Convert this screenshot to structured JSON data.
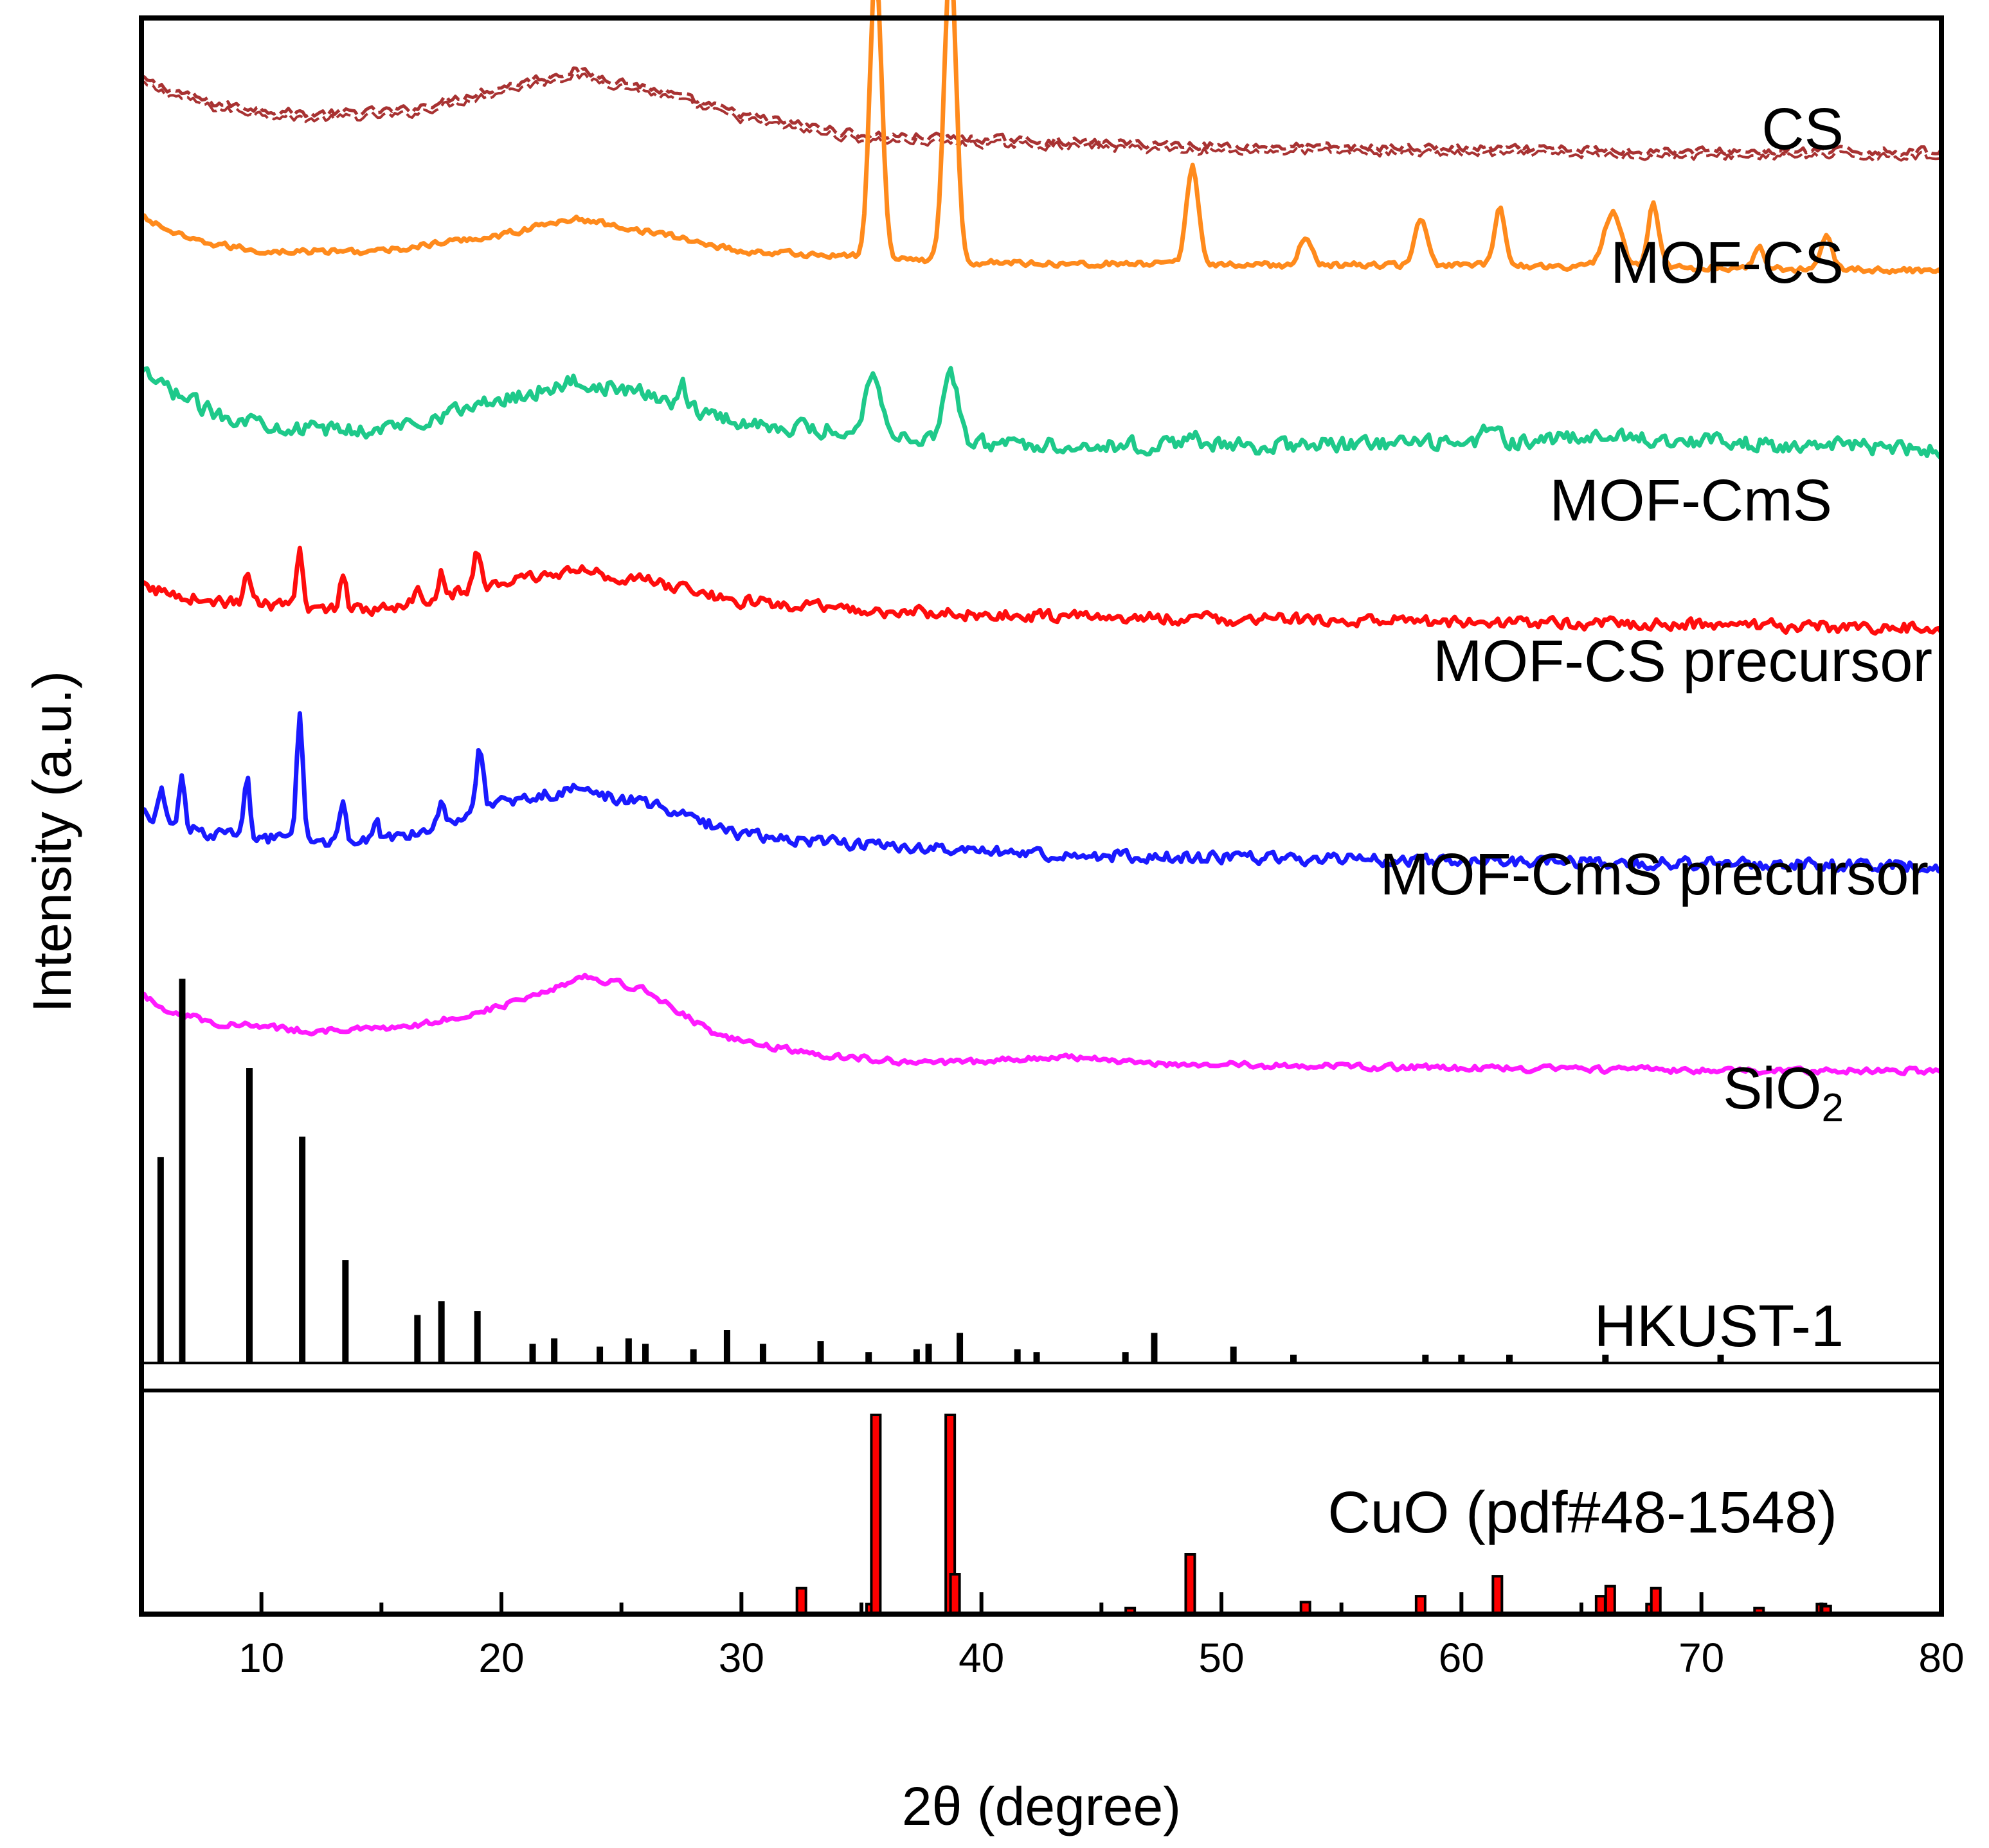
{
  "chart_data": {
    "type": "line",
    "title": "",
    "xlabel": "2θ (degree)",
    "ylabel": "Intensity (a.u.)",
    "xlim": [
      5,
      80
    ],
    "xticks": [
      10,
      20,
      30,
      40,
      50,
      60,
      70,
      80
    ],
    "grid": false,
    "legend": "labels placed at right end of each curve",
    "series": [
      {
        "name": "CS",
        "label": "CS",
        "color": "#a83232",
        "style": "dashed",
        "baseline": 0.935,
        "points": [
          [
            5,
            0.955
          ],
          [
            8,
            0.938
          ],
          [
            12,
            0.93
          ],
          [
            16,
            0.933
          ],
          [
            20,
            0.95
          ],
          [
            23,
            0.962
          ],
          [
            26,
            0.95
          ],
          [
            30,
            0.93
          ],
          [
            35,
            0.915
          ],
          [
            40,
            0.912
          ],
          [
            50,
            0.907
          ],
          [
            60,
            0.905
          ],
          [
            70,
            0.903
          ],
          [
            80,
            0.903
          ]
        ],
        "noise": 0.004,
        "peaks": []
      },
      {
        "name": "MOF-CS",
        "label": "MOF-CS",
        "color": "#ff8a1c",
        "baseline": 0.83,
        "points": [
          [
            5,
            0.855
          ],
          [
            7,
            0.838
          ],
          [
            10,
            0.83
          ],
          [
            15,
            0.83
          ],
          [
            20,
            0.842
          ],
          [
            23,
            0.854
          ],
          [
            26,
            0.845
          ],
          [
            30,
            0.83
          ],
          [
            35,
            0.826
          ],
          [
            40,
            0.822
          ],
          [
            50,
            0.82
          ],
          [
            60,
            0.82
          ],
          [
            70,
            0.818
          ],
          [
            80,
            0.816
          ]
        ],
        "noise": 0.003,
        "peaks": [
          [
            35.6,
            0.21,
            0.25
          ],
          [
            38.7,
            0.22,
            0.25
          ],
          [
            48.8,
            0.072,
            0.25
          ],
          [
            53.5,
            0.02,
            0.25
          ],
          [
            58.3,
            0.034,
            0.25
          ],
          [
            61.6,
            0.041,
            0.22
          ],
          [
            66.3,
            0.04,
            0.35
          ],
          [
            68.0,
            0.046,
            0.22
          ],
          [
            72.4,
            0.017,
            0.22
          ],
          [
            75.2,
            0.026,
            0.22
          ]
        ]
      },
      {
        "name": "MOF-CmS",
        "label": "MOF-CmS",
        "color": "#1ec98a",
        "baseline": 0.695,
        "points": [
          [
            5,
            0.74
          ],
          [
            8,
            0.712
          ],
          [
            12,
            0.7
          ],
          [
            15,
            0.7
          ],
          [
            20,
            0.722
          ],
          [
            23,
            0.735
          ],
          [
            26,
            0.726
          ],
          [
            30,
            0.705
          ],
          [
            35,
            0.698
          ],
          [
            40,
            0.69
          ],
          [
            50,
            0.688
          ],
          [
            60,
            0.69
          ],
          [
            67,
            0.695
          ],
          [
            72,
            0.69
          ],
          [
            80,
            0.685
          ]
        ],
        "noise": 0.008,
        "peaks": [
          [
            35.5,
            0.048,
            0.3
          ],
          [
            38.7,
            0.05,
            0.3
          ],
          [
            27.5,
            0.018,
            0.15
          ],
          [
            48.7,
            0.01,
            0.3
          ],
          [
            61.2,
            0.012,
            0.3
          ]
        ]
      },
      {
        "name": "MOF-CS precursor",
        "label": "MOF-CS precursor",
        "color": "#ff0d0d",
        "baseline": 0.56,
        "points": [
          [
            5,
            0.585
          ],
          [
            8,
            0.575
          ],
          [
            12,
            0.57
          ],
          [
            15,
            0.57
          ],
          [
            20,
            0.588
          ],
          [
            23,
            0.598
          ],
          [
            26,
            0.59
          ],
          [
            30,
            0.575
          ],
          [
            35,
            0.568
          ],
          [
            40,
            0.565
          ],
          [
            50,
            0.562
          ],
          [
            60,
            0.56
          ],
          [
            70,
            0.558
          ],
          [
            80,
            0.555
          ]
        ],
        "noise": 0.006,
        "peaks": [
          [
            9.4,
            0.028,
            0.12
          ],
          [
            11.6,
            0.04,
            0.12
          ],
          [
            13.4,
            0.024,
            0.12
          ],
          [
            16.5,
            0.014,
            0.12
          ],
          [
            17.5,
            0.018,
            0.12
          ],
          [
            19.0,
            0.026,
            0.15
          ]
        ]
      },
      {
        "name": "MOF-CmS precursor",
        "label": "MOF-CmS precursor",
        "color": "#1a1aff",
        "baseline": 0.385,
        "points": [
          [
            5,
            0.42
          ],
          [
            8,
            0.405
          ],
          [
            12,
            0.4
          ],
          [
            15,
            0.4
          ],
          [
            20,
            0.428
          ],
          [
            23,
            0.438
          ],
          [
            26,
            0.428
          ],
          [
            30,
            0.405
          ],
          [
            35,
            0.398
          ],
          [
            40,
            0.392
          ],
          [
            50,
            0.388
          ],
          [
            60,
            0.386
          ],
          [
            70,
            0.384
          ],
          [
            80,
            0.382
          ]
        ],
        "noise": 0.006,
        "peaks": [
          [
            5.8,
            0.022,
            0.12
          ],
          [
            6.7,
            0.035,
            0.12
          ],
          [
            9.4,
            0.048,
            0.12
          ],
          [
            11.6,
            0.092,
            0.12
          ],
          [
            13.4,
            0.03,
            0.12
          ],
          [
            14.8,
            0.012,
            0.12
          ],
          [
            17.5,
            0.016,
            0.12
          ],
          [
            19.1,
            0.046,
            0.15
          ]
        ]
      },
      {
        "name": "SiO2",
        "label": "SiO",
        "label_subscript": "2",
        "color": "#ff1aff",
        "baseline": 0.235,
        "points": [
          [
            5,
            0.288
          ],
          [
            6,
            0.278
          ],
          [
            8,
            0.268
          ],
          [
            12,
            0.262
          ],
          [
            16,
            0.264
          ],
          [
            20,
            0.28
          ],
          [
            23.5,
            0.302
          ],
          [
            26,
            0.292
          ],
          [
            29,
            0.258
          ],
          [
            33,
            0.245
          ],
          [
            38,
            0.238
          ],
          [
            43,
            0.243
          ],
          [
            48,
            0.238
          ],
          [
            55,
            0.236
          ],
          [
            65,
            0.234
          ],
          [
            72,
            0.233
          ],
          [
            80,
            0.233
          ]
        ],
        "noise": 0.003,
        "peaks": []
      },
      {
        "name": "HKUST-1",
        "label": "HKUST-1",
        "color": "#000000",
        "style": "sticks",
        "baseline": 0.02,
        "peaks": [
          [
            5.8,
            0.15
          ],
          [
            6.7,
            0.28
          ],
          [
            9.5,
            0.215
          ],
          [
            11.7,
            0.165
          ],
          [
            13.5,
            0.075
          ],
          [
            16.5,
            0.035
          ],
          [
            17.5,
            0.045
          ],
          [
            19.0,
            0.038
          ],
          [
            21.3,
            0.014
          ],
          [
            22.2,
            0.018
          ],
          [
            24.1,
            0.012
          ],
          [
            25.3,
            0.018
          ],
          [
            26.0,
            0.014
          ],
          [
            28.0,
            0.01
          ],
          [
            29.4,
            0.024
          ],
          [
            30.9,
            0.014
          ],
          [
            33.3,
            0.016
          ],
          [
            35.3,
            0.008
          ],
          [
            37.3,
            0.01
          ],
          [
            37.8,
            0.014
          ],
          [
            39.1,
            0.022
          ],
          [
            41.5,
            0.01
          ],
          [
            42.3,
            0.008
          ],
          [
            46.0,
            0.008
          ],
          [
            47.2,
            0.022
          ],
          [
            50.5,
            0.012
          ],
          [
            53.0,
            0.006
          ],
          [
            58.5,
            0.006
          ],
          [
            60.0,
            0.006
          ],
          [
            62.0,
            0.006
          ],
          [
            66.0,
            0.006
          ],
          [
            70.8,
            0.006
          ]
        ]
      }
    ],
    "reference": {
      "name": "CuO (pdf#48-1548)",
      "label": "CuO (pdf#48-1548)",
      "fill_color": "#ff0000",
      "edge_color": "#000000",
      "bars": [
        [
          32.5,
          0.13
        ],
        [
          35.4,
          0.05
        ],
        [
          35.6,
          1.0
        ],
        [
          38.7,
          1.0
        ],
        [
          38.9,
          0.2
        ],
        [
          46.2,
          0.03
        ],
        [
          48.7,
          0.3
        ],
        [
          53.5,
          0.06
        ],
        [
          58.3,
          0.09
        ],
        [
          61.5,
          0.19
        ],
        [
          65.8,
          0.09
        ],
        [
          66.2,
          0.14
        ],
        [
          67.9,
          0.05
        ],
        [
          68.1,
          0.13
        ],
        [
          72.4,
          0.03
        ],
        [
          75.0,
          0.05
        ],
        [
          75.2,
          0.04
        ]
      ]
    }
  }
}
